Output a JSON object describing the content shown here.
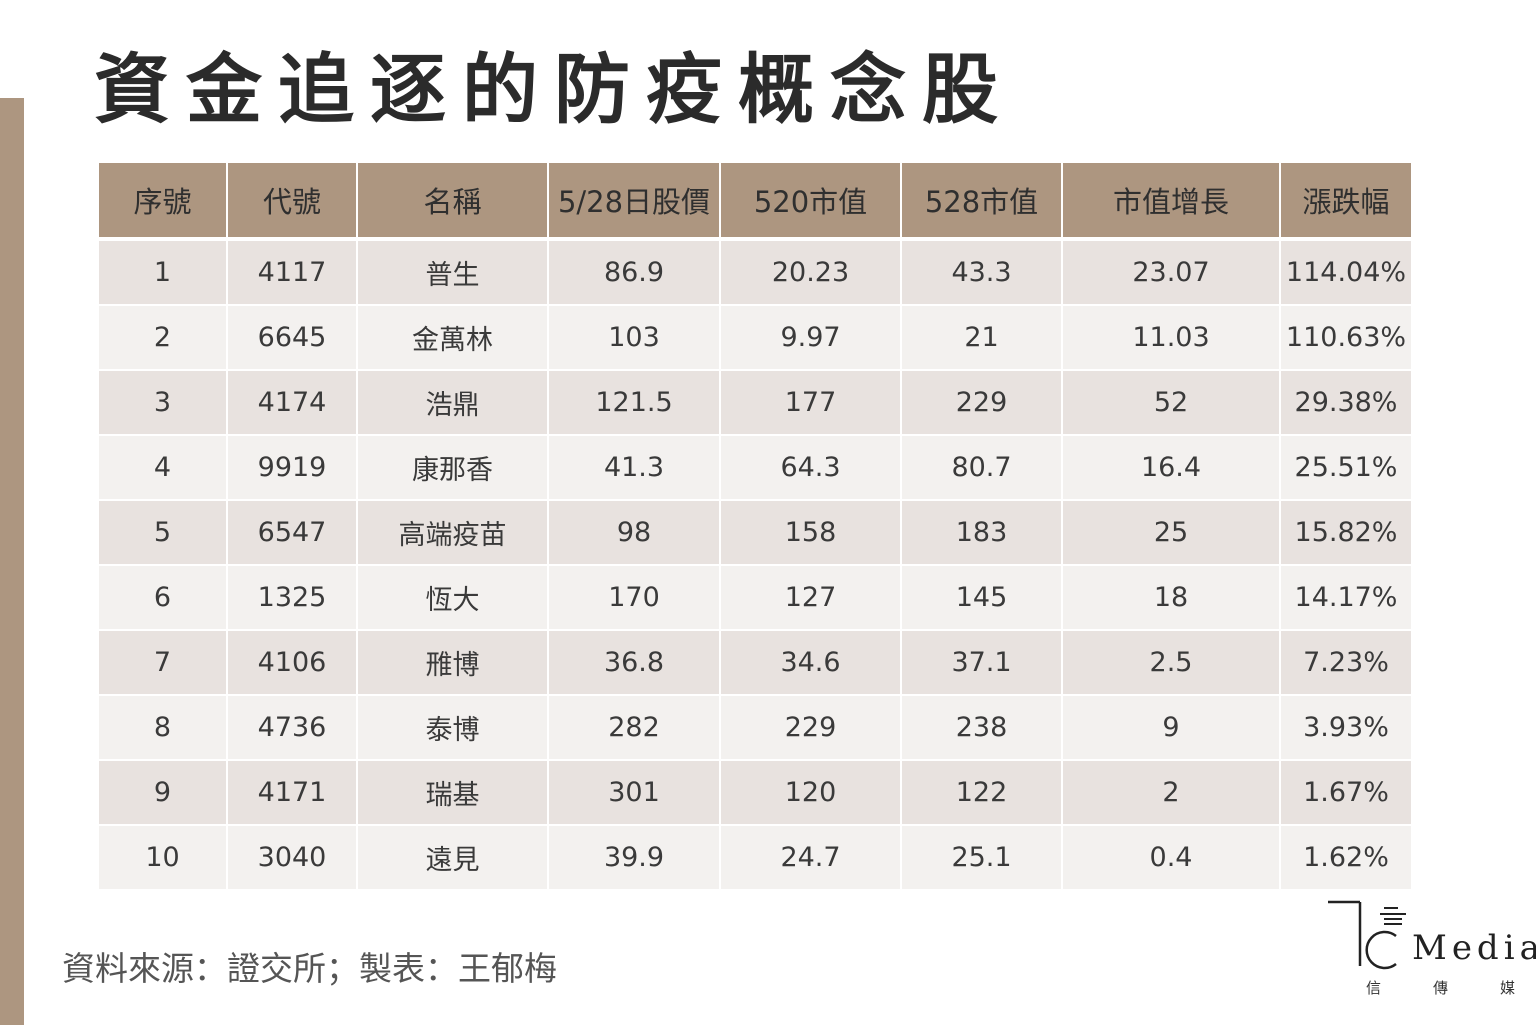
{
  "title": "資金追逐的防疫概念股",
  "table": {
    "headers": [
      "序號",
      "代號",
      "名稱",
      "5/28日股價",
      "520市值",
      "528市值",
      "市值增長",
      "漲跌幅"
    ],
    "rows": [
      [
        "1",
        "4117",
        "普生",
        "86.9",
        "20.23",
        "43.3",
        "23.07",
        "114.04%"
      ],
      [
        "2",
        "6645",
        "金萬林",
        "103",
        "9.97",
        "21",
        "11.03",
        "110.63%"
      ],
      [
        "3",
        "4174",
        "浩鼎",
        "121.5",
        "177",
        "229",
        "52",
        "29.38%"
      ],
      [
        "4",
        "9919",
        "康那香",
        "41.3",
        "64.3",
        "80.7",
        "16.4",
        "25.51%"
      ],
      [
        "5",
        "6547",
        "高端疫苗",
        "98",
        "158",
        "183",
        "25",
        "15.82%"
      ],
      [
        "6",
        "1325",
        "恆大",
        "170",
        "127",
        "145",
        "18",
        "14.17%"
      ],
      [
        "7",
        "4106",
        "雃博",
        "36.8",
        "34.6",
        "37.1",
        "2.5",
        "7.23%"
      ],
      [
        "8",
        "4736",
        "泰博",
        "282",
        "229",
        "238",
        "9",
        "3.93%"
      ],
      [
        "9",
        "4171",
        "瑞基",
        "301",
        "120",
        "122",
        "2",
        "1.67%"
      ],
      [
        "10",
        "3040",
        "遠見",
        "39.9",
        "24.7",
        "25.1",
        "0.4",
        "1.62%"
      ]
    ]
  },
  "source": "資料來源：證交所；製表：王郁梅",
  "logo": {
    "text": "Media",
    "subtitle": "信傳媒"
  },
  "colors": {
    "accent": "#ad9680",
    "row_odd": "#e8e2df",
    "row_even": "#f3f1ef"
  }
}
